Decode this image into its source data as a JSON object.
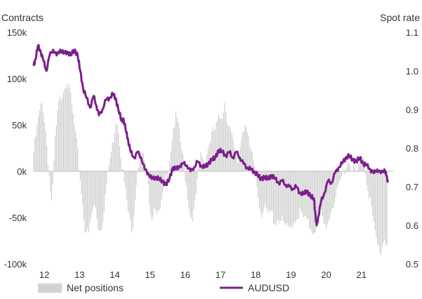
{
  "chart_data": {
    "type": "bar+line",
    "left_axis_title": "Contracts",
    "right_axis_title": "Spot rate",
    "left_ylim": [
      -100000,
      150000
    ],
    "left_ticks": [
      {
        "v": 150000,
        "label": "150k"
      },
      {
        "v": 100000,
        "label": "100k"
      },
      {
        "v": 50000,
        "label": "50k"
      },
      {
        "v": 0,
        "label": "0k"
      },
      {
        "v": -50000,
        "label": "-50k"
      },
      {
        "v": -100000,
        "label": "-100k"
      }
    ],
    "right_ylim": [
      0.5,
      1.1
    ],
    "right_ticks": [
      {
        "v": 1.1,
        "label": "1.1"
      },
      {
        "v": 1.0,
        "label": "1.0"
      },
      {
        "v": 0.9,
        "label": "0.9"
      },
      {
        "v": 0.8,
        "label": "0.8"
      },
      {
        "v": 0.7,
        "label": "0.7"
      },
      {
        "v": 0.6,
        "label": "0.6"
      },
      {
        "v": 0.5,
        "label": "0.5"
      }
    ],
    "xlim": [
      2011.3,
      2021.5
    ],
    "x_ticks": [
      {
        "v": 2011.6,
        "label": "12"
      },
      {
        "v": 2012.6,
        "label": "13"
      },
      {
        "v": 2013.6,
        "label": "14"
      },
      {
        "v": 2014.6,
        "label": "15"
      },
      {
        "v": 2015.6,
        "label": "16"
      },
      {
        "v": 2016.6,
        "label": "17"
      },
      {
        "v": 2017.6,
        "label": "18"
      },
      {
        "v": 2018.6,
        "label": "19"
      },
      {
        "v": 2019.6,
        "label": "20"
      },
      {
        "v": 2020.6,
        "label": "21"
      }
    ],
    "grid": false,
    "legend_position": "bottom",
    "series": [
      {
        "name": "Net positions",
        "kind": "bar",
        "color": "#c8c8c8",
        "points": [
          [
            2011.3,
            20000
          ],
          [
            2011.45,
            60000
          ],
          [
            2011.55,
            75000
          ],
          [
            2011.65,
            40000
          ],
          [
            2011.75,
            -10000
          ],
          [
            2011.82,
            -40000
          ],
          [
            2011.9,
            30000
          ],
          [
            2012.0,
            70000
          ],
          [
            2012.15,
            90000
          ],
          [
            2012.25,
            100000
          ],
          [
            2012.35,
            80000
          ],
          [
            2012.45,
            50000
          ],
          [
            2012.55,
            20000
          ],
          [
            2012.65,
            -20000
          ],
          [
            2012.75,
            -60000
          ],
          [
            2012.85,
            -70000
          ],
          [
            2012.95,
            -45000
          ],
          [
            2013.05,
            -35000
          ],
          [
            2013.15,
            -65000
          ],
          [
            2013.25,
            -55000
          ],
          [
            2013.35,
            -20000
          ],
          [
            2013.45,
            10000
          ],
          [
            2013.55,
            30000
          ],
          [
            2013.65,
            60000
          ],
          [
            2013.72,
            40000
          ],
          [
            2013.8,
            10000
          ],
          [
            2013.9,
            -20000
          ],
          [
            2014.0,
            -50000
          ],
          [
            2014.1,
            -62000
          ],
          [
            2014.15,
            -40000
          ],
          [
            2014.25,
            5000
          ],
          [
            2014.4,
            20000
          ],
          [
            2014.55,
            -20000
          ],
          [
            2014.65,
            -50000
          ],
          [
            2014.75,
            -35000
          ],
          [
            2014.85,
            -50000
          ],
          [
            2014.95,
            -30000
          ],
          [
            2015.05,
            -10000
          ],
          [
            2015.15,
            10000
          ],
          [
            2015.25,
            45000
          ],
          [
            2015.35,
            60000
          ],
          [
            2015.45,
            35000
          ],
          [
            2015.55,
            10000
          ],
          [
            2015.65,
            -20000
          ],
          [
            2015.75,
            -50000
          ],
          [
            2015.85,
            -45000
          ],
          [
            2015.95,
            -10000
          ],
          [
            2016.05,
            20000
          ],
          [
            2016.15,
            10000
          ],
          [
            2016.25,
            25000
          ],
          [
            2016.35,
            40000
          ],
          [
            2016.45,
            45000
          ],
          [
            2016.55,
            55000
          ],
          [
            2016.65,
            62000
          ],
          [
            2016.72,
            75000
          ],
          [
            2016.8,
            55000
          ],
          [
            2016.9,
            40000
          ],
          [
            2017.0,
            20000
          ],
          [
            2017.1,
            10000
          ],
          [
            2017.2,
            40000
          ],
          [
            2017.3,
            55000
          ],
          [
            2017.38,
            35000
          ],
          [
            2017.45,
            20000
          ],
          [
            2017.55,
            10000
          ],
          [
            2017.65,
            -20000
          ],
          [
            2017.75,
            -45000
          ],
          [
            2017.85,
            -40000
          ],
          [
            2017.95,
            -48000
          ],
          [
            2018.05,
            -45000
          ],
          [
            2018.15,
            -55000
          ],
          [
            2018.25,
            -50000
          ],
          [
            2018.35,
            -55000
          ],
          [
            2018.45,
            -60000
          ],
          [
            2018.55,
            -65000
          ],
          [
            2018.65,
            -55000
          ],
          [
            2018.75,
            -50000
          ],
          [
            2018.85,
            -45000
          ],
          [
            2018.95,
            -50000
          ],
          [
            2019.05,
            -55000
          ],
          [
            2019.15,
            -60000
          ],
          [
            2019.25,
            -65000
          ],
          [
            2019.35,
            -55000
          ],
          [
            2019.45,
            -45000
          ],
          [
            2019.55,
            -60000
          ],
          [
            2019.65,
            -55000
          ],
          [
            2019.75,
            -40000
          ],
          [
            2019.85,
            -30000
          ],
          [
            2019.95,
            -20000
          ],
          [
            2020.05,
            -5000
          ],
          [
            2020.15,
            5000
          ],
          [
            2020.25,
            10000
          ],
          [
            2020.35,
            5000
          ],
          [
            2020.45,
            -5000
          ],
          [
            2020.55,
            10000
          ],
          [
            2020.65,
            20000
          ],
          [
            2020.75,
            -10000
          ],
          [
            2020.85,
            -30000
          ],
          [
            2020.95,
            -60000
          ],
          [
            2021.05,
            -80000
          ],
          [
            2021.15,
            -88000
          ],
          [
            2021.25,
            -70000
          ],
          [
            2021.35,
            -82000
          ]
        ]
      },
      {
        "name": "AUDUSD",
        "kind": "line",
        "color": "#7b1f8c",
        "points": [
          [
            2011.3,
            1.015
          ],
          [
            2011.35,
            1.03
          ],
          [
            2011.42,
            1.065
          ],
          [
            2011.5,
            1.05
          ],
          [
            2011.58,
            1.025
          ],
          [
            2011.66,
            1.0
          ],
          [
            2011.75,
            1.04
          ],
          [
            2011.85,
            1.055
          ],
          [
            2011.95,
            1.04
          ],
          [
            2012.05,
            1.055
          ],
          [
            2012.15,
            1.045
          ],
          [
            2012.25,
            1.05
          ],
          [
            2012.35,
            1.04
          ],
          [
            2012.45,
            1.055
          ],
          [
            2012.55,
            1.04
          ],
          [
            2012.62,
            1.0
          ],
          [
            2012.7,
            0.955
          ],
          [
            2012.8,
            0.93
          ],
          [
            2012.9,
            0.905
          ],
          [
            2013.0,
            0.935
          ],
          [
            2013.08,
            0.91
          ],
          [
            2013.15,
            0.885
          ],
          [
            2013.25,
            0.9
          ],
          [
            2013.35,
            0.925
          ],
          [
            2013.45,
            0.93
          ],
          [
            2013.55,
            0.94
          ],
          [
            2013.62,
            0.93
          ],
          [
            2013.7,
            0.9
          ],
          [
            2013.8,
            0.87
          ],
          [
            2013.85,
            0.875
          ],
          [
            2013.93,
            0.84
          ],
          [
            2013.98,
            0.82
          ],
          [
            2014.05,
            0.79
          ],
          [
            2014.15,
            0.775
          ],
          [
            2014.25,
            0.79
          ],
          [
            2014.35,
            0.775
          ],
          [
            2014.45,
            0.745
          ],
          [
            2014.55,
            0.735
          ],
          [
            2014.65,
            0.72
          ],
          [
            2014.75,
            0.725
          ],
          [
            2014.85,
            0.72
          ],
          [
            2014.95,
            0.715
          ],
          [
            2015.05,
            0.705
          ],
          [
            2015.15,
            0.72
          ],
          [
            2015.25,
            0.75
          ],
          [
            2015.35,
            0.745
          ],
          [
            2015.45,
            0.755
          ],
          [
            2015.55,
            0.76
          ],
          [
            2015.65,
            0.755
          ],
          [
            2015.75,
            0.74
          ],
          [
            2015.85,
            0.75
          ],
          [
            2015.95,
            0.765
          ],
          [
            2016.05,
            0.755
          ],
          [
            2016.15,
            0.75
          ],
          [
            2016.25,
            0.76
          ],
          [
            2016.35,
            0.77
          ],
          [
            2016.45,
            0.775
          ],
          [
            2016.55,
            0.795
          ],
          [
            2016.65,
            0.79
          ],
          [
            2016.75,
            0.78
          ],
          [
            2016.85,
            0.79
          ],
          [
            2016.95,
            0.775
          ],
          [
            2017.05,
            0.79
          ],
          [
            2017.15,
            0.775
          ],
          [
            2017.25,
            0.76
          ],
          [
            2017.35,
            0.75
          ],
          [
            2017.45,
            0.745
          ],
          [
            2017.55,
            0.74
          ],
          [
            2017.65,
            0.73
          ],
          [
            2017.75,
            0.72
          ],
          [
            2017.85,
            0.725
          ],
          [
            2017.95,
            0.72
          ],
          [
            2018.05,
            0.73
          ],
          [
            2018.15,
            0.72
          ],
          [
            2018.25,
            0.71
          ],
          [
            2018.35,
            0.715
          ],
          [
            2018.45,
            0.705
          ],
          [
            2018.55,
            0.7
          ],
          [
            2018.65,
            0.695
          ],
          [
            2018.75,
            0.7
          ],
          [
            2018.85,
            0.685
          ],
          [
            2018.95,
            0.68
          ],
          [
            2019.05,
            0.69
          ],
          [
            2019.15,
            0.675
          ],
          [
            2019.25,
            0.67
          ],
          [
            2019.3,
            0.62
          ],
          [
            2019.33,
            0.6
          ],
          [
            2019.38,
            0.625
          ],
          [
            2019.45,
            0.66
          ],
          [
            2019.55,
            0.685
          ],
          [
            2019.65,
            0.715
          ],
          [
            2019.75,
            0.71
          ],
          [
            2019.85,
            0.735
          ],
          [
            2019.95,
            0.75
          ],
          [
            2020.05,
            0.76
          ],
          [
            2020.15,
            0.775
          ],
          [
            2020.25,
            0.78
          ],
          [
            2020.35,
            0.77
          ],
          [
            2020.45,
            0.765
          ],
          [
            2020.55,
            0.775
          ],
          [
            2020.65,
            0.76
          ],
          [
            2020.75,
            0.755
          ],
          [
            2020.85,
            0.745
          ],
          [
            2020.95,
            0.735
          ],
          [
            2021.05,
            0.745
          ],
          [
            2021.15,
            0.735
          ],
          [
            2021.25,
            0.745
          ],
          [
            2021.3,
            0.73
          ],
          [
            2021.35,
            0.715
          ]
        ]
      }
    ]
  }
}
